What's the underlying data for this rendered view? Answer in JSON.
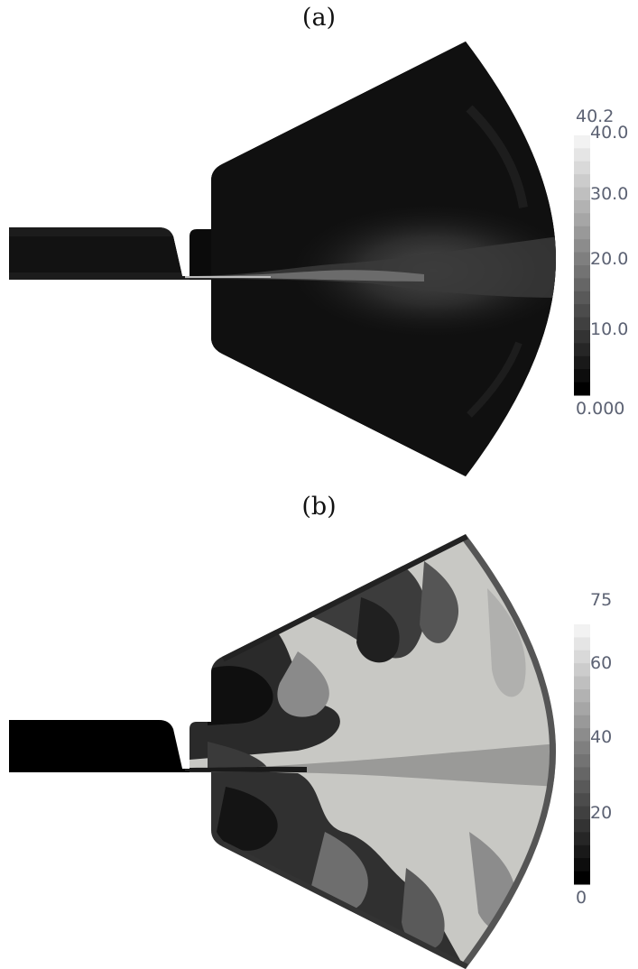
{
  "panels": [
    {
      "label": "(a)",
      "colorbar": {
        "max_label": "40.2",
        "min_label": "0.000",
        "ticks": [
          "40.0",
          "30.0",
          "20.0",
          "10.0"
        ],
        "range": [
          0,
          40.2
        ],
        "tick_values": [
          40,
          30,
          20,
          10
        ]
      }
    },
    {
      "label": "(b)",
      "colorbar": {
        "max_label": "75",
        "min_label": "0",
        "ticks": [
          "60",
          "40",
          "20"
        ],
        "range": [
          0,
          75
        ],
        "tick_values": [
          60,
          40,
          20
        ]
      }
    }
  ]
}
